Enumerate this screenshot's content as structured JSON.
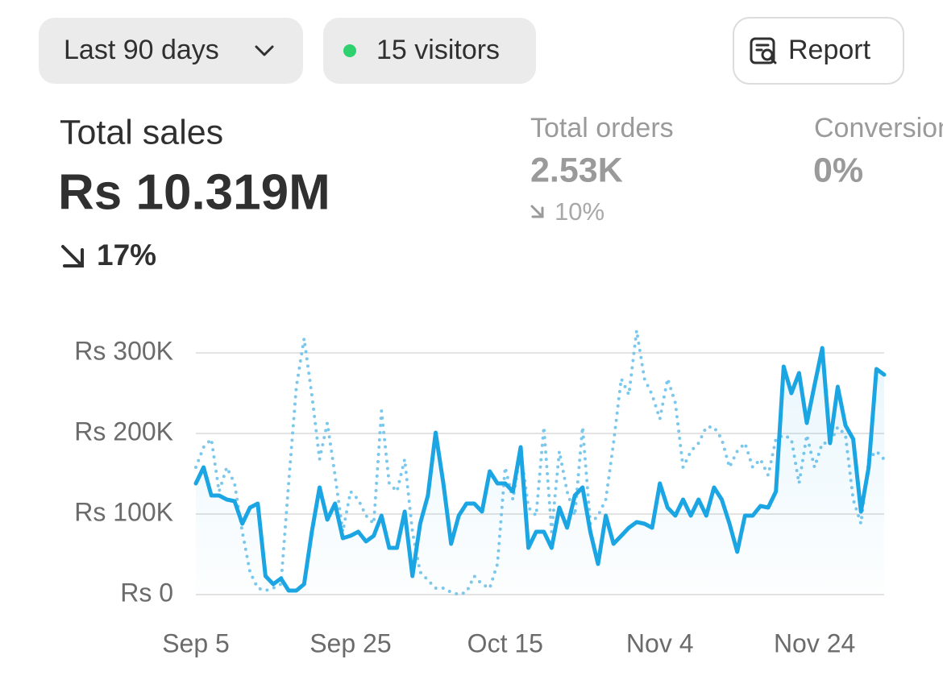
{
  "toolbar": {
    "range": "Last 90 days",
    "visitors": "15 visitors",
    "report": "Report"
  },
  "metrics": [
    {
      "label": "Total sales",
      "value": "Rs 10.319M",
      "change": "17%"
    },
    {
      "label": "Total orders",
      "value": "2.53K",
      "change": "10%"
    },
    {
      "label": "Conversion",
      "value": "0%"
    }
  ],
  "chart_data": {
    "type": "line",
    "categories": [
      "Sep 5",
      null,
      null,
      null,
      null,
      null,
      null,
      null,
      null,
      null,
      null,
      null,
      null,
      null,
      null,
      null,
      null,
      null,
      null,
      null,
      "Sep 25",
      null,
      null,
      null,
      null,
      null,
      null,
      null,
      null,
      null,
      null,
      null,
      null,
      null,
      null,
      null,
      null,
      null,
      null,
      null,
      "Oct 15",
      null,
      null,
      null,
      null,
      null,
      null,
      null,
      null,
      null,
      null,
      null,
      null,
      null,
      null,
      null,
      null,
      null,
      null,
      null,
      "Nov 4",
      null,
      null,
      null,
      null,
      null,
      null,
      null,
      null,
      null,
      null,
      null,
      null,
      null,
      null,
      null,
      null,
      null,
      null,
      null,
      "Nov 24",
      null,
      null,
      null,
      null,
      null,
      null,
      null,
      null,
      null
    ],
    "series": [
      {
        "color": "#1ba6e3",
        "style": "solid",
        "area": true,
        "values": [
          138000,
          158000,
          123000,
          123000,
          118000,
          116000,
          88000,
          108000,
          113000,
          23000,
          13000,
          20000,
          5000,
          5000,
          13000,
          78000,
          133000,
          93000,
          113000,
          70000,
          73000,
          78000,
          66000,
          73000,
          98000,
          58000,
          58000,
          103000,
          23000,
          88000,
          123000,
          201000,
          138000,
          63000,
          98000,
          113000,
          113000,
          103000,
          153000,
          138000,
          138000,
          128000,
          183000,
          58000,
          78000,
          78000,
          58000,
          108000,
          83000,
          123000,
          133000,
          78000,
          38000,
          98000,
          63000,
          73000,
          83000,
          90000,
          88000,
          83000,
          138000,
          108000,
          98000,
          118000,
          98000,
          118000,
          98000,
          133000,
          118000,
          88000,
          53000,
          98000,
          98000,
          110000,
          108000,
          128000,
          283000,
          250000,
          275000,
          213000,
          260000,
          306000,
          188000,
          258000,
          210000,
          193000,
          103000,
          158000,
          280000,
          273000
        ]
      },
      {
        "color": "#7cc8ec",
        "style": "dotted",
        "values": [
          158000,
          183000,
          193000,
          128000,
          158000,
          138000,
          78000,
          28000,
          8000,
          5000,
          8000,
          13000,
          138000,
          258000,
          318000,
          248000,
          168000,
          213000,
          148000,
          78000,
          128000,
          118000,
          98000,
          88000,
          228000,
          138000,
          128000,
          168000,
          78000,
          28000,
          18000,
          8000,
          8000,
          3000,
          0,
          3000,
          23000,
          13000,
          8000,
          38000,
          158000,
          118000,
          178000,
          108000,
          98000,
          208000,
          78000,
          178000,
          128000,
          98000,
          208000,
          88000,
          98000,
          118000,
          188000,
          268000,
          248000,
          328000,
          268000,
          248000,
          218000,
          268000,
          238000,
          158000,
          178000,
          188000,
          208000,
          208000,
          193000,
          158000,
          178000,
          188000,
          158000,
          168000,
          148000,
          193000,
          198000,
          193000,
          138000,
          198000,
          158000,
          188000,
          188000,
          208000,
          198000,
          118000,
          88000,
          168000,
          178000,
          168000
        ]
      }
    ],
    "ylim": [
      0,
      330000
    ],
    "yticks": [
      {
        "value": 0,
        "label": "Rs 0"
      },
      {
        "value": 100000,
        "label": "Rs 100K"
      },
      {
        "value": 200000,
        "label": "Rs 200K"
      },
      {
        "value": 300000,
        "label": "Rs 300K"
      }
    ],
    "grid": true
  }
}
